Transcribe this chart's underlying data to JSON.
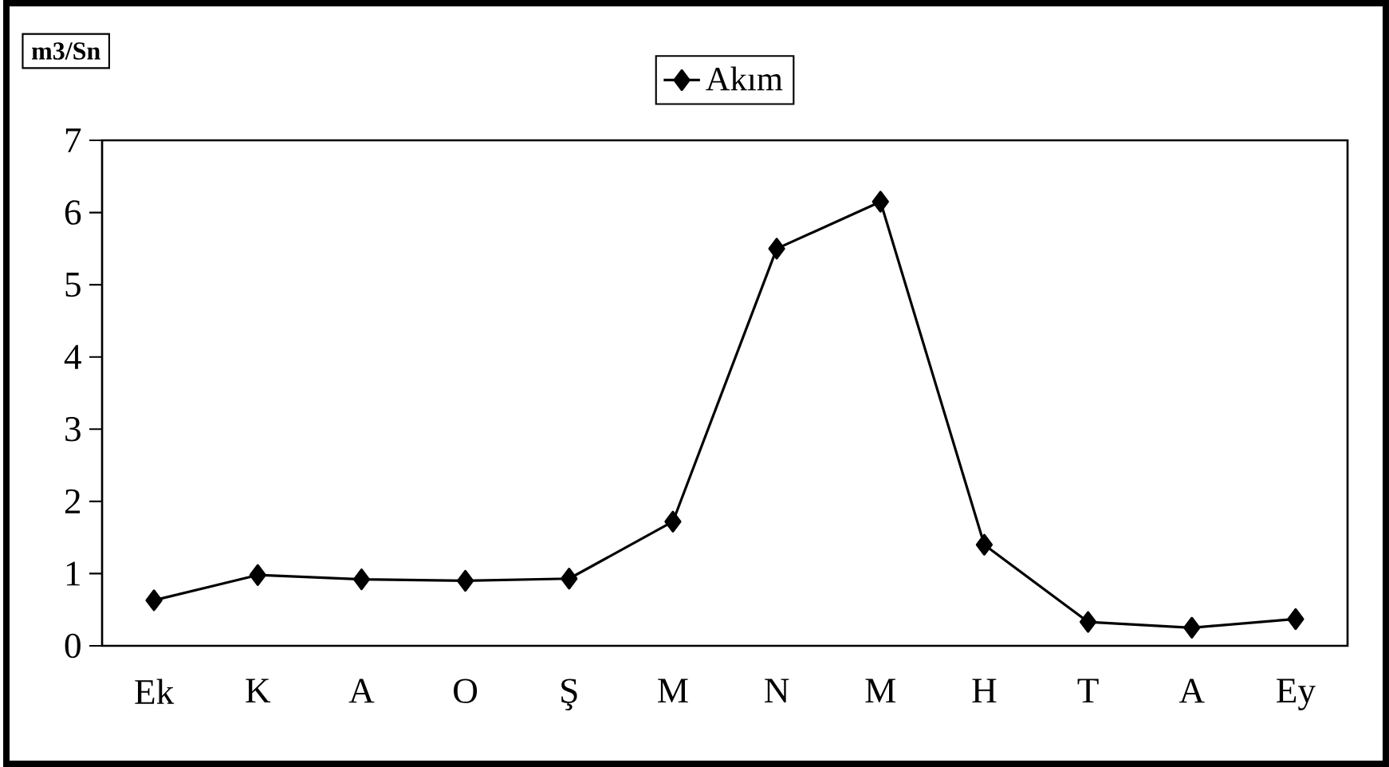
{
  "chart_data": {
    "type": "line",
    "ylabel": "m3/Sn",
    "categories": [
      "Ek",
      "K",
      "A",
      "O",
      "Ş",
      "M",
      "N",
      "M",
      "H",
      "T",
      "A",
      "Ey"
    ],
    "series": [
      {
        "name": "Akım",
        "color": "#000000",
        "values": [
          0.63,
          0.98,
          0.92,
          0.9,
          0.93,
          1.72,
          5.5,
          6.15,
          1.4,
          0.33,
          0.25,
          0.37
        ]
      }
    ],
    "ylim": [
      0,
      7
    ],
    "yticks": [
      0,
      1,
      2,
      3,
      4,
      5,
      6,
      7
    ],
    "marker": "diamond",
    "line_style": "solid",
    "legend": "top",
    "grid": false
  }
}
